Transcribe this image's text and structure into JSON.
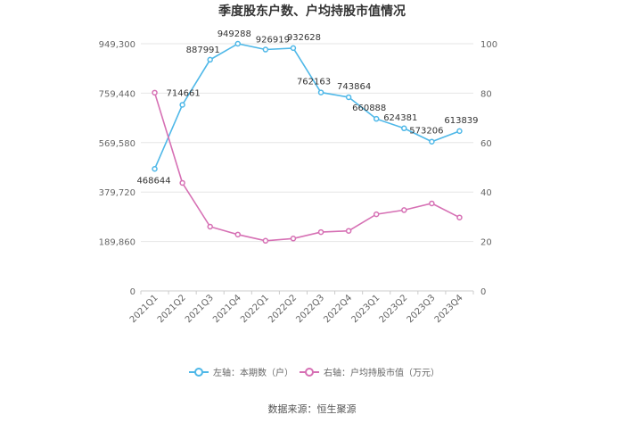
{
  "chart_data": {
    "type": "line",
    "title": "季度股东户数、户均持股市值情况",
    "categories": [
      "2021Q1",
      "2021Q2",
      "2021Q3",
      "2021Q4",
      "2022Q1",
      "2022Q2",
      "2022Q3",
      "2022Q4",
      "2023Q1",
      "2023Q2",
      "2023Q3",
      "2023Q4"
    ],
    "left_axis": {
      "ticks": [
        "949,300",
        "759,440",
        "569,580",
        "379,720",
        "189,860",
        "0"
      ],
      "ylim": [
        0,
        949300
      ]
    },
    "right_axis": {
      "ticks": [
        "100",
        "80",
        "60",
        "40",
        "20",
        "0"
      ],
      "ylim": [
        0,
        100
      ]
    },
    "series": [
      {
        "name": "左轴：本期数（户）",
        "axis": "left",
        "color": "#4fb8e8",
        "values": [
          468644,
          714661,
          887991,
          949288,
          926919,
          932628,
          762163,
          743864,
          660888,
          624381,
          573206,
          613839
        ],
        "labels": [
          "468644",
          "714661",
          "887991",
          "949288",
          "926919",
          "932628",
          "762163",
          "743864",
          "660888",
          "624381",
          "573206",
          "613839"
        ]
      },
      {
        "name": "右轴：户均持股市值（万元）",
        "axis": "right",
        "color": "#d670b4",
        "values": [
          80.2,
          43.7,
          26.0,
          22.8,
          20.3,
          21.2,
          23.8,
          24.3,
          31.0,
          32.7,
          35.4,
          29.7
        ]
      }
    ],
    "grid": true,
    "legend_position": "bottom",
    "source": "数据来源：恒生聚源"
  }
}
